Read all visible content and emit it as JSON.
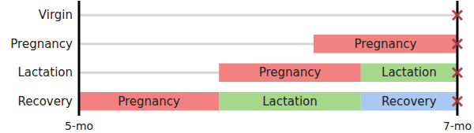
{
  "chart_data": {
    "type": "gantt",
    "orientation": "horizontal",
    "categories": [
      "Virgin",
      "Pregnancy",
      "Lactation",
      "Recovery"
    ],
    "series": [
      {
        "name": "Pregnancy",
        "color": "#f28282",
        "values": [
          null,
          [
            6.24,
            7.0
          ],
          [
            5.74,
            6.49
          ],
          [
            5.0,
            5.74
          ]
        ]
      },
      {
        "name": "Lactation",
        "color": "#a6d88c",
        "values": [
          null,
          null,
          [
            6.49,
            7.0
          ],
          [
            5.74,
            6.49
          ]
        ]
      },
      {
        "name": "Recovery",
        "color": "#a9c9f2",
        "values": [
          null,
          null,
          null,
          [
            6.49,
            7.0
          ]
        ]
      }
    ],
    "xlim": [
      5,
      7
    ],
    "xticks": [
      {
        "value": 5,
        "label": "5-mo"
      },
      {
        "value": 7,
        "label": "7-mo"
      }
    ],
    "grid": false,
    "data_labels": true
  }
}
